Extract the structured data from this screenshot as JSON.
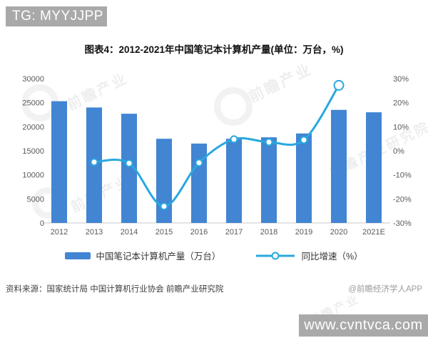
{
  "header": {
    "badge": "TG: MYYJJPP",
    "badge_bg": "#a9a9a9"
  },
  "title": {
    "text": "图表4：2012-2021年中国笔记本计算机产量(单位：万台，%)"
  },
  "chart_data": {
    "type": "bar+line",
    "categories": [
      "2012",
      "2013",
      "2014",
      "2015",
      "2016",
      "2017",
      "2018",
      "2019",
      "2020",
      "2021E"
    ],
    "series": [
      {
        "name": "中国笔记本计算机产量（万台）",
        "type": "bar",
        "axis": "left",
        "color": "#4285d2",
        "values": [
          25300,
          24000,
          22700,
          17500,
          16500,
          17500,
          17800,
          18600,
          23500,
          23000
        ]
      },
      {
        "name": "同比增速（%）",
        "type": "line",
        "axis": "right",
        "color": "#29a8df",
        "marker": "open-circle",
        "values": [
          null,
          -4.7,
          -5.2,
          -23.1,
          -5.0,
          4.8,
          3.6,
          4.5,
          27.2,
          null
        ]
      }
    ],
    "left_axis": {
      "min": 0,
      "max": 30000,
      "step": 5000,
      "ticks": [
        "0",
        "5000",
        "10000",
        "15000",
        "20000",
        "25000",
        "30000"
      ]
    },
    "right_axis": {
      "min": -30,
      "max": 30,
      "step": 10,
      "suffix": "%",
      "ticks": [
        "-30%",
        "-20%",
        "-10%",
        "0%",
        "10%",
        "20%",
        "30%"
      ]
    },
    "grid": false,
    "legend_position": "bottom",
    "tick_color": "#595959"
  },
  "source": {
    "text": "资料来源：国家统计局 中国计算机行业协会 前瞻产业研究院"
  },
  "attribution": {
    "text": "@前瞻经济学人APP"
  },
  "footer": {
    "url": "www.cvntvca.com",
    "bg": "#a9a9a9"
  },
  "watermark": {
    "logo_text": "前瞻产业",
    "full_text": "前瞻产业研究院"
  }
}
